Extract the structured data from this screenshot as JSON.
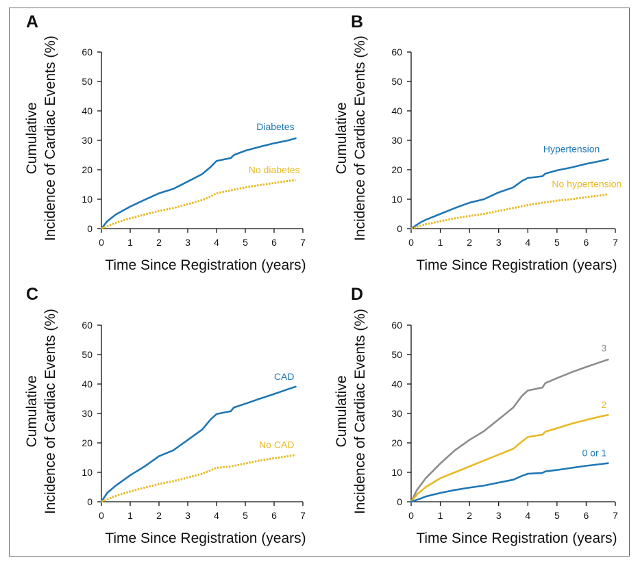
{
  "colors": {
    "blue": "#1f77b4",
    "gold": "#e8b923",
    "gray": "#8c8c8c"
  },
  "chart_data": [
    {
      "panel": "A",
      "type": "line",
      "xlabel": "Time Since Registration (years)",
      "ylabel": [
        "Cumulative",
        "Incidence of Cardiac Events (%)"
      ],
      "xlim": [
        0,
        7
      ],
      "ylim": [
        0,
        60
      ],
      "xticks": [
        0,
        1,
        2,
        3,
        4,
        5,
        6,
        7
      ],
      "yticks": [
        0,
        10,
        20,
        30,
        40,
        50,
        60
      ],
      "series": [
        {
          "name": "Diabetes",
          "color": "#1f77b4",
          "dashed": false,
          "x": [
            0,
            0.2,
            0.5,
            1,
            1.5,
            2,
            2.5,
            3,
            3.5,
            3.8,
            4,
            4.5,
            4.6,
            5,
            5.5,
            6,
            6.5,
            6.75
          ],
          "y": [
            0,
            2.5,
            4.8,
            7.5,
            9.8,
            12,
            13.5,
            16,
            18.5,
            21,
            23,
            24,
            25,
            26.5,
            27.8,
            29,
            30,
            30.7
          ]
        },
        {
          "name": "No diabetes",
          "color": "#e8b923",
          "dashed": true,
          "x": [
            0,
            0.5,
            1,
            1.5,
            2,
            2.5,
            3,
            3.5,
            3.8,
            4,
            4.5,
            5,
            5.5,
            6,
            6.5,
            6.75
          ],
          "y": [
            0,
            2,
            3.5,
            4.8,
            6,
            7,
            8.3,
            9.7,
            11,
            12,
            13,
            14,
            14.8,
            15.5,
            16.2,
            16.5
          ]
        }
      ]
    },
    {
      "panel": "B",
      "type": "line",
      "xlabel": "Time Since Registration (years)",
      "ylabel": [
        "Cumulative",
        "Incidence of Cardiac Events (%)"
      ],
      "xlim": [
        0,
        7
      ],
      "ylim": [
        0,
        60
      ],
      "xticks": [
        0,
        1,
        2,
        3,
        4,
        5,
        6,
        7
      ],
      "yticks": [
        0,
        10,
        20,
        30,
        40,
        50,
        60
      ],
      "series": [
        {
          "name": "Hypertension",
          "color": "#1f77b4",
          "dashed": false,
          "x": [
            0,
            0.3,
            0.5,
            1,
            1.5,
            2,
            2.5,
            3,
            3.5,
            3.8,
            4,
            4.5,
            4.6,
            5,
            5.5,
            6,
            6.5,
            6.75
          ],
          "y": [
            0,
            2,
            3,
            5,
            7,
            8.8,
            10,
            12.3,
            14,
            16.2,
            17.2,
            17.8,
            18.7,
            19.8,
            20.8,
            22,
            23,
            23.6
          ]
        },
        {
          "name": "No hypertension",
          "color": "#e8b923",
          "dashed": true,
          "x": [
            0,
            0.5,
            1,
            1.5,
            2,
            2.5,
            3,
            3.5,
            4,
            4.5,
            5,
            5.5,
            6,
            6.5,
            6.75
          ],
          "y": [
            0,
            1.5,
            2.5,
            3.5,
            4.3,
            5,
            6,
            7,
            8,
            8.8,
            9.5,
            10,
            10.7,
            11.3,
            11.7
          ]
        }
      ]
    },
    {
      "panel": "C",
      "type": "line",
      "xlabel": "Time Since Registration (years)",
      "ylabel": [
        "Cumulative",
        "Incidence of Cardiac Events (%)"
      ],
      "xlim": [
        0,
        7
      ],
      "ylim": [
        0,
        60
      ],
      "xticks": [
        0,
        1,
        2,
        3,
        4,
        5,
        6,
        7
      ],
      "yticks": [
        0,
        10,
        20,
        30,
        40,
        50,
        60
      ],
      "series": [
        {
          "name": "CAD",
          "color": "#1f77b4",
          "dashed": false,
          "x": [
            0,
            0.2,
            0.5,
            1,
            1.5,
            2,
            2.5,
            3,
            3.5,
            3.8,
            4,
            4.5,
            4.6,
            5,
            5.5,
            6,
            6.5,
            6.75
          ],
          "y": [
            0,
            3,
            5.5,
            9,
            12,
            15.5,
            17.5,
            21,
            24.5,
            28,
            29.8,
            30.8,
            32,
            33.3,
            35,
            36.6,
            38.3,
            39.1
          ]
        },
        {
          "name": "No CAD",
          "color": "#e8b923",
          "dashed": true,
          "x": [
            0,
            0.5,
            1,
            1.5,
            2,
            2.5,
            3,
            3.5,
            3.8,
            4,
            4.5,
            5,
            5.5,
            6,
            6.5,
            6.75
          ],
          "y": [
            0,
            2,
            3.5,
            4.8,
            6,
            7,
            8.2,
            9.5,
            10.7,
            11.5,
            12,
            13,
            14,
            14.8,
            15.5,
            15.9
          ]
        }
      ]
    },
    {
      "panel": "D",
      "type": "line",
      "xlabel": "Time Since Registration (years)",
      "ylabel": [
        "Cumulative",
        "Incidence of Cardiac Events (%)"
      ],
      "xlim": [
        0,
        7
      ],
      "ylim": [
        0,
        60
      ],
      "xticks": [
        0,
        1,
        2,
        3,
        4,
        5,
        6,
        7
      ],
      "yticks": [
        0,
        10,
        20,
        30,
        40,
        50,
        60
      ],
      "series": [
        {
          "name": "3",
          "color": "#8c8c8c",
          "dashed": false,
          "x": [
            0,
            0.2,
            0.5,
            1,
            1.5,
            2,
            2.5,
            3,
            3.5,
            3.8,
            4,
            4.5,
            4.6,
            5,
            5.5,
            6,
            6.5,
            6.75
          ],
          "y": [
            0,
            4,
            8,
            13,
            17.5,
            21,
            24,
            28,
            32,
            36,
            37.8,
            38.8,
            40.3,
            42,
            44,
            45.8,
            47.5,
            48.3
          ]
        },
        {
          "name": "2",
          "color": "#e8b923",
          "dashed": false,
          "x": [
            0,
            0.2,
            0.5,
            1,
            1.5,
            2,
            2.5,
            3,
            3.5,
            3.8,
            4,
            4.5,
            4.6,
            5,
            5.5,
            6,
            6.5,
            6.75
          ],
          "y": [
            0,
            2.5,
            5,
            8,
            10,
            12,
            14,
            16,
            18,
            20.5,
            22,
            22.8,
            23.8,
            25,
            26.5,
            27.8,
            29,
            29.5
          ]
        },
        {
          "name": "0 or 1",
          "color": "#1f77b4",
          "dashed": false,
          "x": [
            0,
            0.3,
            0.5,
            1,
            1.5,
            2,
            2.5,
            3,
            3.5,
            3.8,
            4,
            4.5,
            4.6,
            5,
            5.5,
            6,
            6.5,
            6.75
          ],
          "y": [
            0,
            1,
            1.8,
            3,
            4,
            4.8,
            5.5,
            6.5,
            7.5,
            8.8,
            9.5,
            9.8,
            10.3,
            10.8,
            11.5,
            12.2,
            12.8,
            13.1
          ]
        }
      ]
    }
  ]
}
